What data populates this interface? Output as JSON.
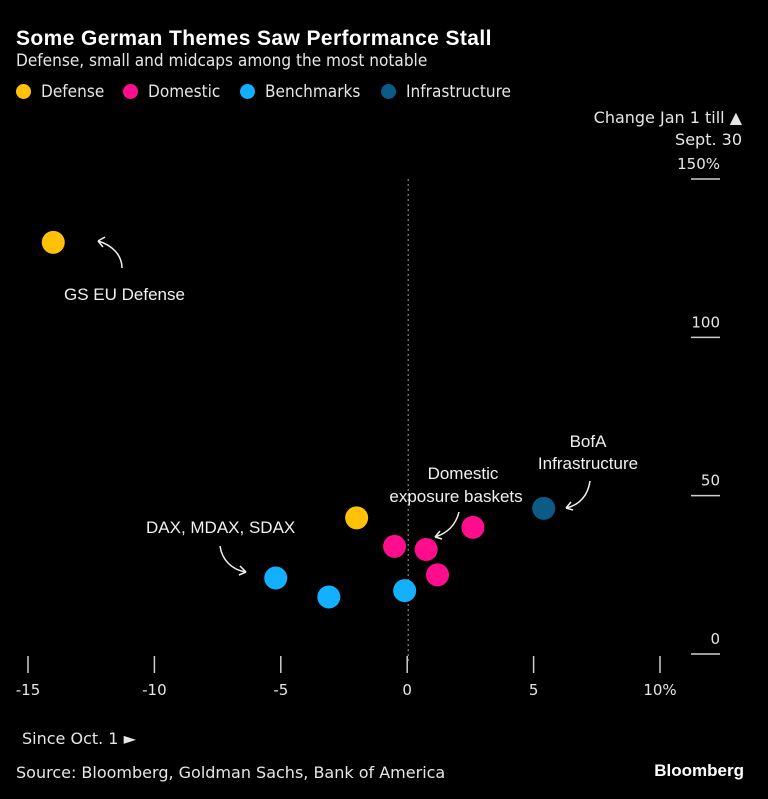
{
  "header": {
    "title": "Some German Themes Saw Performance Stall",
    "subtitle": "Defense, small and midcaps among the most notable"
  },
  "legend": [
    {
      "label": "Defense",
      "color": "#ffc107"
    },
    {
      "label": "Domestic",
      "color": "#ff0d8d"
    },
    {
      "label": "Benchmarks",
      "color": "#13b0ff"
    },
    {
      "label": "Infrastructure",
      "color": "#0b5b87"
    }
  ],
  "axes": {
    "y_title_line1": "Change Jan 1 till ▲",
    "y_title_line2": "Sept. 30",
    "x_note": "Since Oct. 1 ►"
  },
  "footer": {
    "source": "Source: Bloomberg, Goldman Sachs, Bank of America",
    "brand": "Bloomberg"
  },
  "chart_data": {
    "type": "scatter",
    "title": "Some German Themes Saw Performance Stall",
    "subtitle": "Defense, small and midcaps among the most notable",
    "xlabel": "Since Oct. 1",
    "ylabel": "Change Jan 1 till Sept. 30",
    "xlim": [
      -15,
      10
    ],
    "ylim": [
      0,
      150
    ],
    "x_ticks": [
      -15,
      -10,
      -5,
      0,
      5,
      10
    ],
    "x_tick_labels": [
      "-15",
      "-10",
      "-5",
      "0",
      "5",
      "10%"
    ],
    "y_ticks": [
      0,
      50,
      100,
      150
    ],
    "y_tick_labels": [
      "0",
      "50",
      "100",
      "150%"
    ],
    "grid": false,
    "zero_line": "dotted vertical at x=0",
    "legend_position": "top-left",
    "series": [
      {
        "name": "Defense",
        "color": "#ffc107",
        "points": [
          {
            "x": -14.0,
            "y": 130
          },
          {
            "x": -2.0,
            "y": 43
          }
        ]
      },
      {
        "name": "Domestic",
        "color": "#ff0d8d",
        "points": [
          {
            "x": -0.5,
            "y": 34
          },
          {
            "x": 0.75,
            "y": 33
          },
          {
            "x": 2.6,
            "y": 40
          },
          {
            "x": 1.2,
            "y": 25
          }
        ]
      },
      {
        "name": "Benchmarks",
        "color": "#13b0ff",
        "points": [
          {
            "x": -5.2,
            "y": 24
          },
          {
            "x": -3.1,
            "y": 18
          },
          {
            "x": -0.1,
            "y": 20
          }
        ]
      },
      {
        "name": "Infrastructure",
        "color": "#0b5b87",
        "points": [
          {
            "x": 5.4,
            "y": 46
          }
        ]
      }
    ],
    "annotations": [
      {
        "text": [
          "GS EU Defense"
        ],
        "target": "Defense (-14.0, 130)"
      },
      {
        "text": [
          "DAX, MDAX, SDAX"
        ],
        "target": "Benchmarks"
      },
      {
        "text": [
          "Domestic",
          "exposure baskets"
        ],
        "target": "Domestic"
      },
      {
        "text": [
          "BofA",
          "Infrastructure"
        ],
        "target": "Infrastructure (5.4, 46)"
      }
    ]
  }
}
